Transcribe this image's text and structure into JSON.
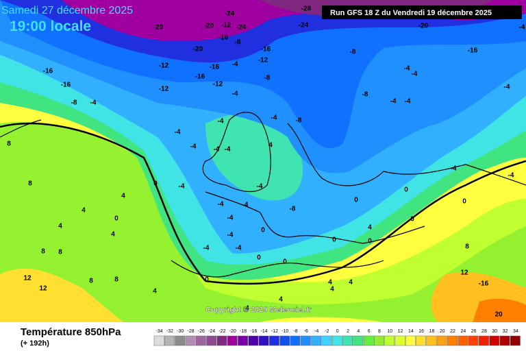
{
  "header": {
    "date": "Samedi 27 décembre 2025",
    "time": "19:00 locale",
    "run": "Run GFS 18 Z du Vendredi 19 décembre 2025",
    "copyright": "Copyright © 2025 Meteociel.fr"
  },
  "legend": {
    "title": "Température 850hPa",
    "lead": "(+ 192h)",
    "values": [
      -34,
      -32,
      -30,
      -28,
      -26,
      -24,
      -22,
      -20,
      -18,
      -16,
      -14,
      -12,
      -10,
      -8,
      -6,
      -4,
      -2,
      0,
      2,
      4,
      6,
      8,
      10,
      12,
      14,
      16,
      18,
      20,
      22,
      24,
      26,
      28,
      30,
      32,
      34
    ],
    "colors": [
      "#dcdcdc",
      "#b4b4b4",
      "#8c8c8c",
      "#b48cb4",
      "#a064a0",
      "#904890",
      "#802880",
      "#a000a0",
      "#7800a8",
      "#5000a8",
      "#3010c0",
      "#2030e0",
      "#1050f0",
      "#1070ff",
      "#2090ff",
      "#30b0ff",
      "#40d0ff",
      "#40e4e4",
      "#40e4b0",
      "#40e480",
      "#60f040",
      "#90f030",
      "#c0ff30",
      "#e0ff30",
      "#ffff40",
      "#ffe030",
      "#ffc020",
      "#ffa010",
      "#ff8000",
      "#ff6000",
      "#ff4000",
      "#f02000",
      "#d00000",
      "#b00000",
      "#900000"
    ]
  },
  "contour_labels": [
    -28,
    -24,
    -24,
    -20,
    -12,
    -24,
    -20,
    -20,
    -16,
    -8,
    -20,
    -16,
    -8,
    -16,
    -4,
    -16,
    -12,
    -16,
    -4,
    -12,
    -4,
    -16,
    -12,
    -16,
    -12,
    -8,
    -4,
    -8,
    -4,
    -4,
    -8,
    -4,
    -4,
    -4,
    -4,
    -4,
    -4,
    -8,
    -4,
    -4,
    -4,
    4,
    8,
    8,
    4,
    0,
    -4,
    -4,
    -4,
    4,
    0,
    -4,
    -4,
    -4,
    -8,
    0,
    0,
    0,
    4,
    4,
    -4,
    -4,
    0,
    0,
    4,
    8,
    8,
    -4,
    -4,
    0,
    0,
    0,
    8,
    12,
    12,
    8,
    8,
    0,
    0,
    4,
    4,
    4,
    4,
    12,
    -16,
    4,
    20,
    4
  ]
}
